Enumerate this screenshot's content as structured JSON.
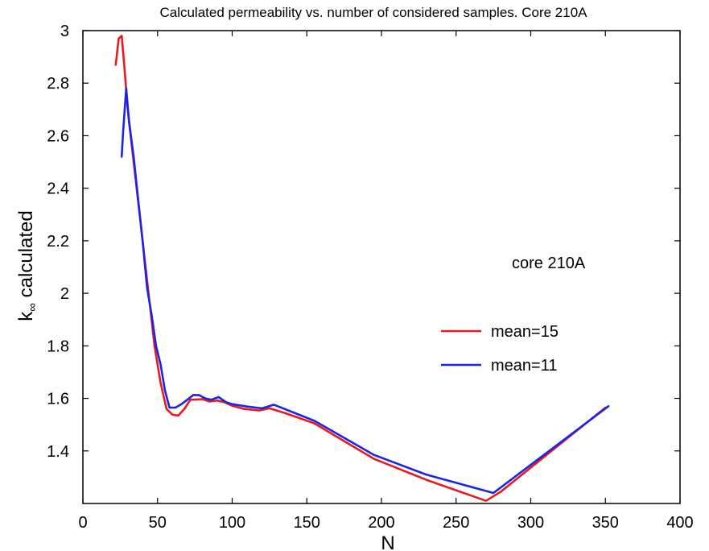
{
  "chart_data": {
    "type": "line",
    "title": "Calculated permeability vs. number of considered samples. Core 210A",
    "xlabel": "N",
    "ylabel": {
      "main": "k",
      "subscript": "∞",
      "rest": " calculated"
    },
    "xlim": [
      0,
      400
    ],
    "ylim": [
      1.2,
      3.0
    ],
    "xticks": [
      0,
      50,
      100,
      150,
      200,
      250,
      300,
      350,
      400
    ],
    "yticks": [
      1.4,
      1.6,
      1.8,
      2.0,
      2.2,
      2.4,
      2.6,
      2.8,
      3.0
    ],
    "xtick_labels": [
      "0",
      "50",
      "100",
      "150",
      "200",
      "250",
      "300",
      "350",
      "400"
    ],
    "ytick_labels": [
      "1.4",
      "1.6",
      "1.8",
      "2",
      "2.2",
      "2.4",
      "2.6",
      "2.8",
      "3"
    ],
    "grid": false,
    "legend_position": "right",
    "annotation": "core 210A",
    "series": [
      {
        "name": "mean=15",
        "color": "#e8191f",
        "points": [
          [
            22,
            2.87
          ],
          [
            24,
            2.97
          ],
          [
            26,
            2.98
          ],
          [
            28,
            2.85
          ],
          [
            30,
            2.7
          ],
          [
            33,
            2.55
          ],
          [
            36,
            2.4
          ],
          [
            40,
            2.2
          ],
          [
            44,
            2.0
          ],
          [
            48,
            1.8
          ],
          [
            52,
            1.66
          ],
          [
            56,
            1.56
          ],
          [
            60,
            1.538
          ],
          [
            64,
            1.535
          ],
          [
            68,
            1.56
          ],
          [
            72,
            1.595
          ],
          [
            76,
            1.596
          ],
          [
            80,
            1.597
          ],
          [
            85,
            1.588
          ],
          [
            90,
            1.592
          ],
          [
            95,
            1.585
          ],
          [
            100,
            1.572
          ],
          [
            108,
            1.56
          ],
          [
            118,
            1.554
          ],
          [
            125,
            1.562
          ],
          [
            135,
            1.545
          ],
          [
            155,
            1.505
          ],
          [
            195,
            1.37
          ],
          [
            230,
            1.29
          ],
          [
            270,
            1.21
          ],
          [
            280,
            1.245
          ],
          [
            350,
            1.565
          ]
        ]
      },
      {
        "name": "mean=11",
        "color": "#1c24e6",
        "points": [
          [
            26,
            2.52
          ],
          [
            27,
            2.62
          ],
          [
            29,
            2.78
          ],
          [
            31,
            2.65
          ],
          [
            34,
            2.52
          ],
          [
            37,
            2.36
          ],
          [
            40,
            2.2
          ],
          [
            43,
            2.02
          ],
          [
            46,
            1.92
          ],
          [
            49,
            1.8
          ],
          [
            52,
            1.73
          ],
          [
            55,
            1.63
          ],
          [
            58,
            1.565
          ],
          [
            62,
            1.565
          ],
          [
            66,
            1.578
          ],
          [
            70,
            1.595
          ],
          [
            74,
            1.613
          ],
          [
            78,
            1.612
          ],
          [
            82,
            1.6
          ],
          [
            86,
            1.595
          ],
          [
            91,
            1.605
          ],
          [
            96,
            1.585
          ],
          [
            100,
            1.578
          ],
          [
            110,
            1.569
          ],
          [
            120,
            1.562
          ],
          [
            128,
            1.576
          ],
          [
            155,
            1.515
          ],
          [
            195,
            1.385
          ],
          [
            230,
            1.31
          ],
          [
            275,
            1.24
          ],
          [
            352,
            1.57
          ]
        ]
      }
    ]
  }
}
